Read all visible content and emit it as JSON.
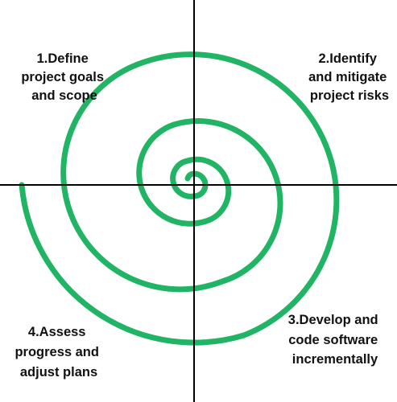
{
  "diagram": {
    "type": "spiral-model",
    "spiral_color": "#22b465",
    "axis_color": "#000000",
    "label_color": "#111111",
    "quadrants": [
      {
        "id": "top-left",
        "lines": [
          "1.Define",
          "project goals",
          "and scope"
        ]
      },
      {
        "id": "top-right",
        "lines": [
          "2.Identify",
          "and mitigate",
          "project risks"
        ]
      },
      {
        "id": "bottom-right",
        "lines": [
          "3.Develop and",
          "code software",
          "incrementally"
        ]
      },
      {
        "id": "bottom-left",
        "lines": [
          "4.Assess",
          "progress and",
          "adjust plans"
        ]
      }
    ]
  }
}
